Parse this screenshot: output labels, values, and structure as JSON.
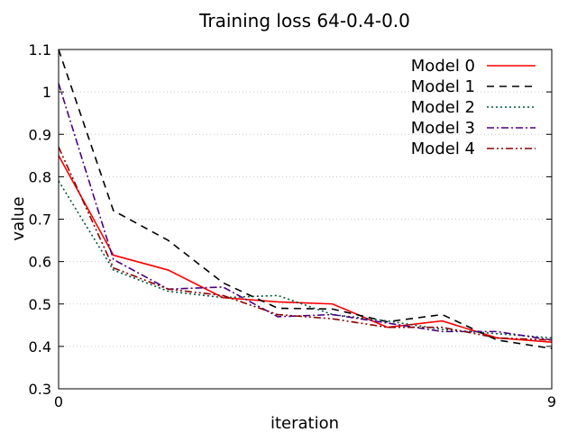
{
  "chart_data": {
    "type": "line",
    "title": "Training loss 64-0.4-0.0",
    "xlabel": "iteration",
    "ylabel": "value",
    "xlim": [
      0,
      9
    ],
    "ylim": [
      0.3,
      1.1
    ],
    "x_ticks": [
      "0",
      "9"
    ],
    "y_ticks": [
      "0.3",
      "0.4",
      "0.5",
      "0.6",
      "0.7",
      "0.8",
      "0.9",
      "1",
      "1.1"
    ],
    "y_tick_values": [
      0.3,
      0.4,
      0.5,
      0.6,
      0.7,
      0.8,
      0.9,
      1.0,
      1.1
    ],
    "grid": "horizontal dotted",
    "legend_position": "top-right",
    "x": [
      0,
      1,
      2,
      3,
      4,
      5,
      6,
      7,
      8,
      9
    ],
    "series": [
      {
        "name": "Model 0",
        "color": "#ff0000",
        "dash": "solid",
        "values": [
          0.85,
          0.615,
          0.58,
          0.515,
          0.505,
          0.5,
          0.445,
          0.46,
          0.42,
          0.41
        ]
      },
      {
        "name": "Model 1",
        "color": "#000000",
        "dash": "dashed",
        "values": [
          1.1,
          0.72,
          0.65,
          0.55,
          0.49,
          0.488,
          0.458,
          0.475,
          0.415,
          0.395
        ]
      },
      {
        "name": "Model 2",
        "color": "#00543c",
        "dash": "dotted",
        "values": [
          0.79,
          0.58,
          0.53,
          0.515,
          0.52,
          0.475,
          0.46,
          0.44,
          0.43,
          0.42
        ]
      },
      {
        "name": "Model 3",
        "color": "#4b0082",
        "dash": "dashdot",
        "values": [
          1.02,
          0.605,
          0.535,
          0.54,
          0.47,
          0.475,
          0.455,
          0.435,
          0.435,
          0.415
        ]
      },
      {
        "name": "Model 4",
        "color": "#8b0000",
        "dash": "dashdotdot",
        "values": [
          0.87,
          0.585,
          0.535,
          0.52,
          0.475,
          0.465,
          0.445,
          0.445,
          0.42,
          0.415
        ]
      }
    ]
  }
}
